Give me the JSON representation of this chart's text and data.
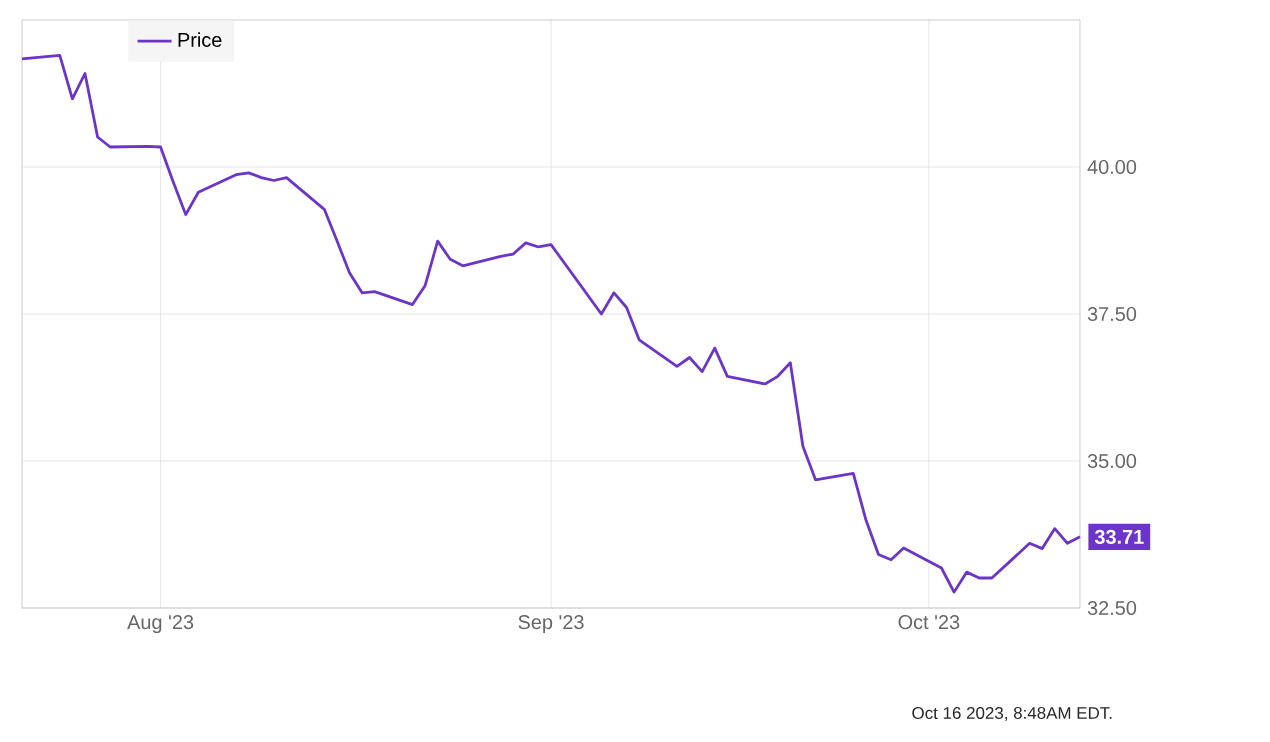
{
  "chart_data": {
    "type": "line",
    "series": [
      {
        "name": "Price",
        "color": "#6c35c9",
        "x": [
          "2023-07-21",
          "2023-07-24",
          "2023-07-25",
          "2023-07-26",
          "2023-07-27",
          "2023-07-28",
          "2023-07-31",
          "2023-08-01",
          "2023-08-02",
          "2023-08-03",
          "2023-08-04",
          "2023-08-07",
          "2023-08-08",
          "2023-08-09",
          "2023-08-10",
          "2023-08-11",
          "2023-08-14",
          "2023-08-15",
          "2023-08-16",
          "2023-08-17",
          "2023-08-18",
          "2023-08-21",
          "2023-08-22",
          "2023-08-23",
          "2023-08-24",
          "2023-08-25",
          "2023-08-28",
          "2023-08-29",
          "2023-08-30",
          "2023-08-31",
          "2023-09-01",
          "2023-09-05",
          "2023-09-06",
          "2023-09-07",
          "2023-09-08",
          "2023-09-11",
          "2023-09-12",
          "2023-09-13",
          "2023-09-14",
          "2023-09-15",
          "2023-09-18",
          "2023-09-19",
          "2023-09-20",
          "2023-09-21",
          "2023-09-22",
          "2023-09-25",
          "2023-09-26",
          "2023-09-27",
          "2023-09-28",
          "2023-09-29",
          "2023-10-02",
          "2023-10-03",
          "2023-10-04",
          "2023-10-05",
          "2023-10-06",
          "2023-10-09",
          "2023-10-10",
          "2023-10-11",
          "2023-10-12",
          "2023-10-13"
        ],
        "values": [
          41.84,
          41.9,
          41.16,
          41.59,
          40.51,
          40.34,
          40.35,
          40.34,
          39.75,
          39.19,
          39.57,
          39.87,
          39.9,
          39.82,
          39.77,
          39.82,
          39.28,
          38.75,
          38.2,
          37.86,
          37.88,
          37.66,
          37.98,
          38.74,
          38.43,
          38.32,
          38.48,
          38.52,
          38.71,
          38.64,
          38.68,
          37.5,
          37.86,
          37.61,
          37.06,
          36.61,
          36.76,
          36.52,
          36.92,
          36.44,
          36.31,
          36.44,
          36.67,
          35.25,
          34.68,
          34.79,
          34.0,
          33.41,
          33.32,
          33.52,
          33.18,
          32.77,
          33.11,
          33.01,
          33.01,
          33.6,
          33.51,
          33.85,
          33.6,
          33.71
        ]
      }
    ],
    "xlim": [
      "2023-07-21",
      "2023-10-13"
    ],
    "xticks": [
      {
        "value": "2023-08-01",
        "label": "Aug '23"
      },
      {
        "value": "2023-09-01",
        "label": "Sep '23"
      },
      {
        "value": "2023-10-01",
        "label": "Oct '23"
      }
    ],
    "ylim": [
      32.5,
      42.5
    ],
    "yticks": [
      {
        "value": 32.5,
        "label": "32.50"
      },
      {
        "value": 35,
        "label": "35.00"
      },
      {
        "value": 37.5,
        "label": "37.50"
      },
      {
        "value": 40,
        "label": "40.00"
      }
    ],
    "grid": true,
    "legend": "top left",
    "line_style": "solid",
    "marker": "none",
    "annotations": [
      {
        "text": "33.71",
        "x": "2023-10-13",
        "y": 33.71
      },
      "Oct 16 2023, 8:48AM EDT."
    ]
  }
}
